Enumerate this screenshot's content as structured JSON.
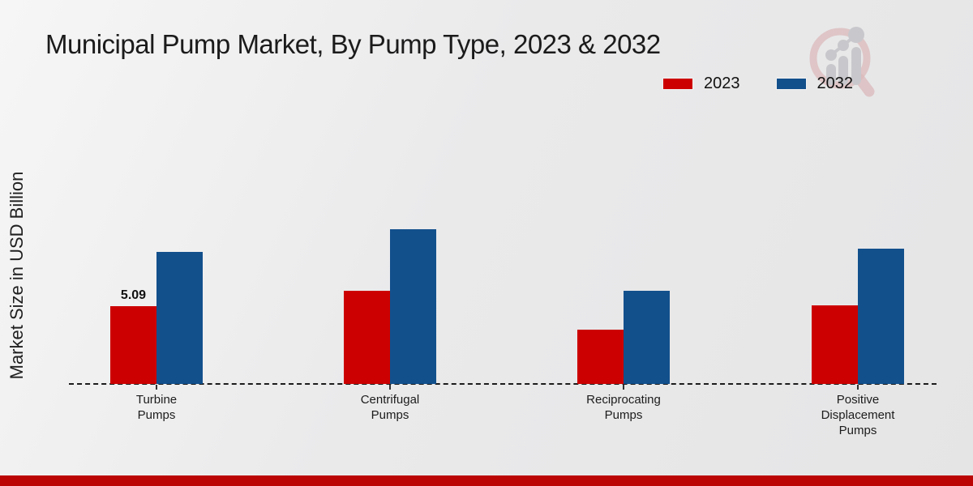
{
  "title": "Municipal Pump Market, By Pump Type, 2023 & 2032",
  "ylabel": "Market Size in USD Billion",
  "colors": {
    "series_2023": "#cc0000",
    "series_2032": "#12508c",
    "bottom_strip": "#bb0404",
    "axis": "#1c1c1c",
    "background": "#e9e9ea"
  },
  "watermark_icon": "magnifier-bar-chart-logo-icon",
  "chart_data": {
    "type": "bar",
    "title": "Municipal Pump Market, By Pump Type, 2023 & 2032",
    "xlabel": "",
    "ylabel": "Market Size in USD Billion",
    "categories": [
      "Turbine\nPumps",
      "Centrifugal\nPumps",
      "Reciprocating\nPumps",
      "Positive\nDisplacement\nPumps"
    ],
    "series": [
      {
        "name": "2023",
        "color": "#cc0000",
        "values": [
          5.09,
          6.1,
          3.55,
          5.15
        ]
      },
      {
        "name": "2032",
        "color": "#12508c",
        "values": [
          8.64,
          10.13,
          6.1,
          8.86
        ]
      }
    ],
    "annotations": [
      {
        "series": "2023",
        "category_index": 0,
        "text": "5.09"
      }
    ],
    "ylim": [
      0,
      11
    ],
    "grid": false,
    "axis_style": "dashed-baseline-only",
    "legend_position": "top-right"
  }
}
